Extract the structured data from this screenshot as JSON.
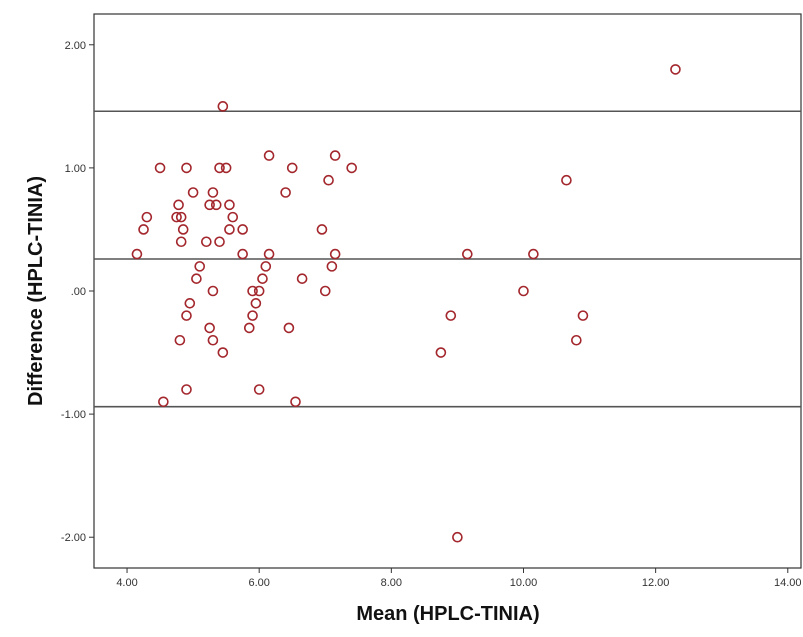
{
  "chart_data": {
    "type": "scatter",
    "title": "",
    "xlabel": "Mean (HPLC-TINIA)",
    "ylabel": "Difference (HPLC-TINIA)",
    "xlim": [
      3.5,
      14.2
    ],
    "ylim": [
      -2.25,
      2.25
    ],
    "x_ticks": [
      4,
      6,
      8,
      10,
      12,
      14
    ],
    "x_tick_labels": [
      "4.00",
      "6.00",
      "8.00",
      "10.00",
      "12.00",
      "14.00"
    ],
    "y_ticks": [
      2,
      1,
      0,
      -1,
      -2
    ],
    "y_tick_labels": [
      "2.00",
      "1.00",
      ".00",
      "-1.00",
      "-2.00"
    ],
    "grid": false,
    "reference_lines": [
      1.46,
      0.26,
      -0.94
    ],
    "marker": "hollow-circle",
    "point_color": "#a3272d",
    "line_color": "#555555",
    "points": [
      {
        "x": 4.15,
        "y": 0.3
      },
      {
        "x": 4.25,
        "y": 0.5
      },
      {
        "x": 4.3,
        "y": 0.6
      },
      {
        "x": 4.5,
        "y": 1.0
      },
      {
        "x": 4.55,
        "y": -0.9
      },
      {
        "x": 4.75,
        "y": 0.6
      },
      {
        "x": 4.78,
        "y": 0.7
      },
      {
        "x": 4.82,
        "y": 0.6
      },
      {
        "x": 4.82,
        "y": 0.4
      },
      {
        "x": 4.8,
        "y": -0.4
      },
      {
        "x": 4.85,
        "y": 0.5
      },
      {
        "x": 4.9,
        "y": 1.0
      },
      {
        "x": 4.9,
        "y": -0.2
      },
      {
        "x": 4.95,
        "y": -0.1
      },
      {
        "x": 4.9,
        "y": -0.8
      },
      {
        "x": 5.0,
        "y": 0.8
      },
      {
        "x": 5.05,
        "y": 0.1
      },
      {
        "x": 5.1,
        "y": 0.2
      },
      {
        "x": 5.2,
        "y": 0.4
      },
      {
        "x": 5.25,
        "y": 0.7
      },
      {
        "x": 5.25,
        "y": -0.3
      },
      {
        "x": 5.3,
        "y": 0.8
      },
      {
        "x": 5.3,
        "y": 0.0
      },
      {
        "x": 5.3,
        "y": -0.4
      },
      {
        "x": 5.35,
        "y": 0.7
      },
      {
        "x": 5.4,
        "y": 1.0
      },
      {
        "x": 5.4,
        "y": 0.4
      },
      {
        "x": 5.45,
        "y": 1.5
      },
      {
        "x": 5.45,
        "y": -0.5
      },
      {
        "x": 5.5,
        "y": 1.0
      },
      {
        "x": 5.55,
        "y": 0.7
      },
      {
        "x": 5.55,
        "y": 0.5
      },
      {
        "x": 5.6,
        "y": 0.6
      },
      {
        "x": 5.75,
        "y": 0.5
      },
      {
        "x": 5.75,
        "y": 0.3
      },
      {
        "x": 5.85,
        "y": -0.3
      },
      {
        "x": 5.9,
        "y": 0.0
      },
      {
        "x": 5.9,
        "y": -0.2
      },
      {
        "x": 5.95,
        "y": -0.1
      },
      {
        "x": 6.0,
        "y": 0.0
      },
      {
        "x": 6.0,
        "y": -0.8
      },
      {
        "x": 6.05,
        "y": 0.1
      },
      {
        "x": 6.1,
        "y": 0.2
      },
      {
        "x": 6.15,
        "y": 1.1
      },
      {
        "x": 6.15,
        "y": 0.3
      },
      {
        "x": 6.4,
        "y": 0.8
      },
      {
        "x": 6.45,
        "y": -0.3
      },
      {
        "x": 6.5,
        "y": 1.0
      },
      {
        "x": 6.55,
        "y": -0.9
      },
      {
        "x": 6.65,
        "y": 0.1
      },
      {
        "x": 6.95,
        "y": 0.5
      },
      {
        "x": 7.0,
        "y": 0.0
      },
      {
        "x": 7.05,
        "y": 0.9
      },
      {
        "x": 7.1,
        "y": 0.2
      },
      {
        "x": 7.15,
        "y": 1.1
      },
      {
        "x": 7.15,
        "y": 0.3
      },
      {
        "x": 7.4,
        "y": 1.0
      },
      {
        "x": 8.75,
        "y": -0.5
      },
      {
        "x": 8.9,
        "y": -0.2
      },
      {
        "x": 9.0,
        "y": -2.0
      },
      {
        "x": 9.15,
        "y": 0.3
      },
      {
        "x": 10.0,
        "y": 0.0
      },
      {
        "x": 10.15,
        "y": 0.3
      },
      {
        "x": 10.65,
        "y": 0.9
      },
      {
        "x": 10.8,
        "y": -0.4
      },
      {
        "x": 10.9,
        "y": -0.2
      },
      {
        "x": 12.3,
        "y": 1.8
      }
    ]
  }
}
